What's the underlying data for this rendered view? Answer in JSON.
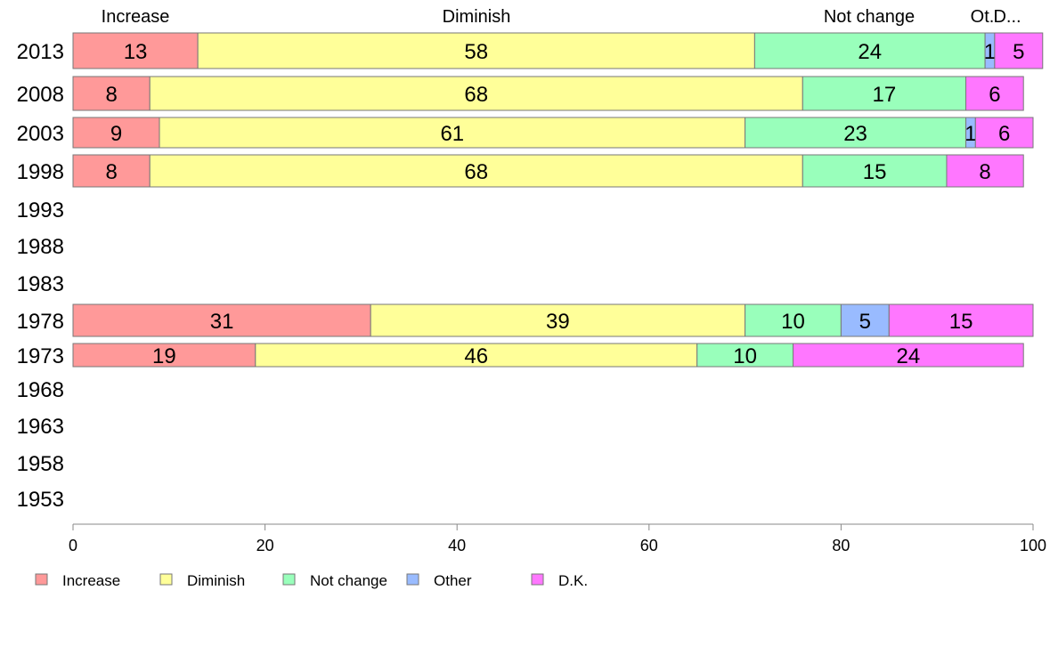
{
  "chart_data": {
    "type": "bar",
    "orientation": "horizontal",
    "stacked": true,
    "categories": [
      "2013",
      "2008",
      "2003",
      "1998",
      "1993",
      "1988",
      "1983",
      "1978",
      "1973",
      "1968",
      "1963",
      "1958",
      "1953"
    ],
    "series": [
      {
        "name": "Increase",
        "color": "#ff9999",
        "values": [
          13,
          8,
          9,
          8,
          null,
          null,
          null,
          31,
          19,
          null,
          null,
          null,
          null
        ]
      },
      {
        "name": "Diminish",
        "color": "#ffff99",
        "values": [
          58,
          68,
          61,
          68,
          null,
          null,
          null,
          39,
          46,
          null,
          null,
          null,
          null
        ]
      },
      {
        "name": "Not change",
        "color": "#99ffbb",
        "values": [
          24,
          17,
          23,
          15,
          null,
          null,
          null,
          10,
          10,
          null,
          null,
          null,
          null
        ]
      },
      {
        "name": "Other",
        "color": "#99bbff",
        "values": [
          1,
          0,
          1,
          0,
          null,
          null,
          null,
          5,
          0,
          null,
          null,
          null,
          null
        ]
      },
      {
        "name": "D.K.",
        "color": "#ff77ff",
        "values": [
          5,
          6,
          6,
          8,
          null,
          null,
          null,
          15,
          24,
          null,
          null,
          null,
          null
        ]
      }
    ],
    "top_labels": [
      "Increase",
      "Diminish",
      "Not change",
      "Ot.",
      "D..."
    ],
    "xlim": [
      0,
      100
    ],
    "xticks": [
      "0",
      "20",
      "40",
      "60",
      "80",
      "100"
    ],
    "grid": false,
    "legend": {
      "position": "bottom-left",
      "items": [
        "Increase",
        "Diminish",
        "Not change",
        "Other",
        "D.K."
      ]
    }
  }
}
